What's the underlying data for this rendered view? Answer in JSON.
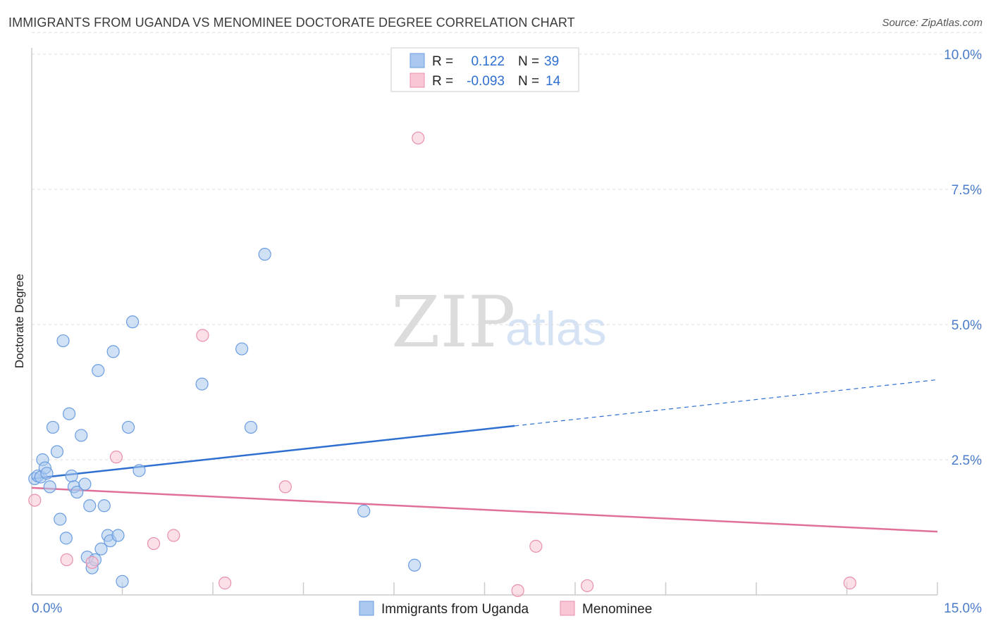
{
  "title": "IMMIGRANTS FROM UGANDA VS MENOMINEE DOCTORATE DEGREE CORRELATION CHART",
  "source": "Source: ZipAtlas.com",
  "watermark": {
    "zip": "ZIP",
    "atlas": "atlas"
  },
  "stats": [
    {
      "r_label": "R =",
      "r_value": "0.122",
      "n_label": "N =",
      "n_value": "39"
    },
    {
      "r_label": "R =",
      "r_value": "-0.093",
      "n_label": "N =",
      "n_value": "14"
    }
  ],
  "legend": [
    {
      "label": "Immigrants from Uganda"
    },
    {
      "label": "Menominee"
    }
  ],
  "colors": {
    "blue_fill": "#aac8ef",
    "blue_stroke": "#6b9de0",
    "blue_line": "#2e6fd0",
    "pink_fill": "#f8c6d5",
    "pink_stroke": "#e890ab",
    "pink_line": "#e0709a",
    "grid": "#dddddd",
    "tick_text": "#4a7cc9"
  },
  "chart_data": {
    "type": "scatter",
    "xlabel": "",
    "ylabel": "Doctorate Degree",
    "xlim": [
      0,
      15
    ],
    "ylim": [
      0,
      10.4
    ],
    "x_tick_labels": [
      "0.0%",
      "15.0%"
    ],
    "y_ticks": [
      2.5,
      5.0,
      7.5,
      10.0
    ],
    "y_tick_labels": [
      "2.5%",
      "5.0%",
      "7.5%",
      "10.0%"
    ],
    "grid": "horizontal dashed",
    "legend_position": "bottom-center",
    "series": [
      {
        "name": "Immigrants from Uganda",
        "color": "blue",
        "points": [
          [
            0.05,
            2.15
          ],
          [
            0.1,
            2.2
          ],
          [
            0.15,
            2.18
          ],
          [
            0.18,
            2.5
          ],
          [
            0.22,
            2.35
          ],
          [
            0.25,
            2.25
          ],
          [
            0.3,
            2.0
          ],
          [
            0.35,
            3.1
          ],
          [
            0.42,
            2.65
          ],
          [
            0.47,
            1.4
          ],
          [
            0.52,
            4.7
          ],
          [
            0.57,
            1.05
          ],
          [
            0.62,
            3.35
          ],
          [
            0.66,
            2.2
          ],
          [
            0.7,
            2.0
          ],
          [
            0.75,
            1.9
          ],
          [
            0.82,
            2.95
          ],
          [
            0.88,
            2.05
          ],
          [
            0.92,
            0.7
          ],
          [
            0.96,
            1.65
          ],
          [
            1.0,
            0.5
          ],
          [
            1.05,
            0.65
          ],
          [
            1.1,
            4.15
          ],
          [
            1.15,
            0.85
          ],
          [
            1.2,
            1.65
          ],
          [
            1.26,
            1.1
          ],
          [
            1.3,
            1.0
          ],
          [
            1.35,
            4.5
          ],
          [
            1.43,
            1.1
          ],
          [
            1.5,
            0.25
          ],
          [
            1.6,
            3.1
          ],
          [
            1.67,
            5.05
          ],
          [
            1.78,
            2.3
          ],
          [
            2.82,
            3.9
          ],
          [
            3.48,
            4.55
          ],
          [
            3.63,
            3.1
          ],
          [
            3.86,
            6.3
          ],
          [
            5.5,
            1.55
          ],
          [
            6.34,
            0.55
          ]
        ]
      },
      {
        "name": "Menominee",
        "color": "pink",
        "points": [
          [
            0.05,
            1.75
          ],
          [
            0.58,
            0.65
          ],
          [
            1.0,
            0.6
          ],
          [
            1.4,
            2.55
          ],
          [
            2.02,
            0.95
          ],
          [
            2.35,
            1.1
          ],
          [
            2.83,
            4.8
          ],
          [
            3.2,
            0.22
          ],
          [
            4.2,
            2.0
          ],
          [
            6.4,
            8.45
          ],
          [
            8.05,
            0.08
          ],
          [
            8.35,
            0.9
          ],
          [
            9.2,
            0.17
          ],
          [
            13.55,
            0.22
          ]
        ]
      }
    ],
    "trend_lines": [
      {
        "series": "Immigrants from Uganda",
        "x_solid": [
          0,
          8.0
        ],
        "x_dashed": [
          8.0,
          15.0
        ],
        "y_start": 2.15,
        "y_end": 3.98
      },
      {
        "series": "Menominee",
        "x_solid": [
          0,
          15.0
        ],
        "y_start": 1.98,
        "y_end": 1.17
      }
    ]
  }
}
